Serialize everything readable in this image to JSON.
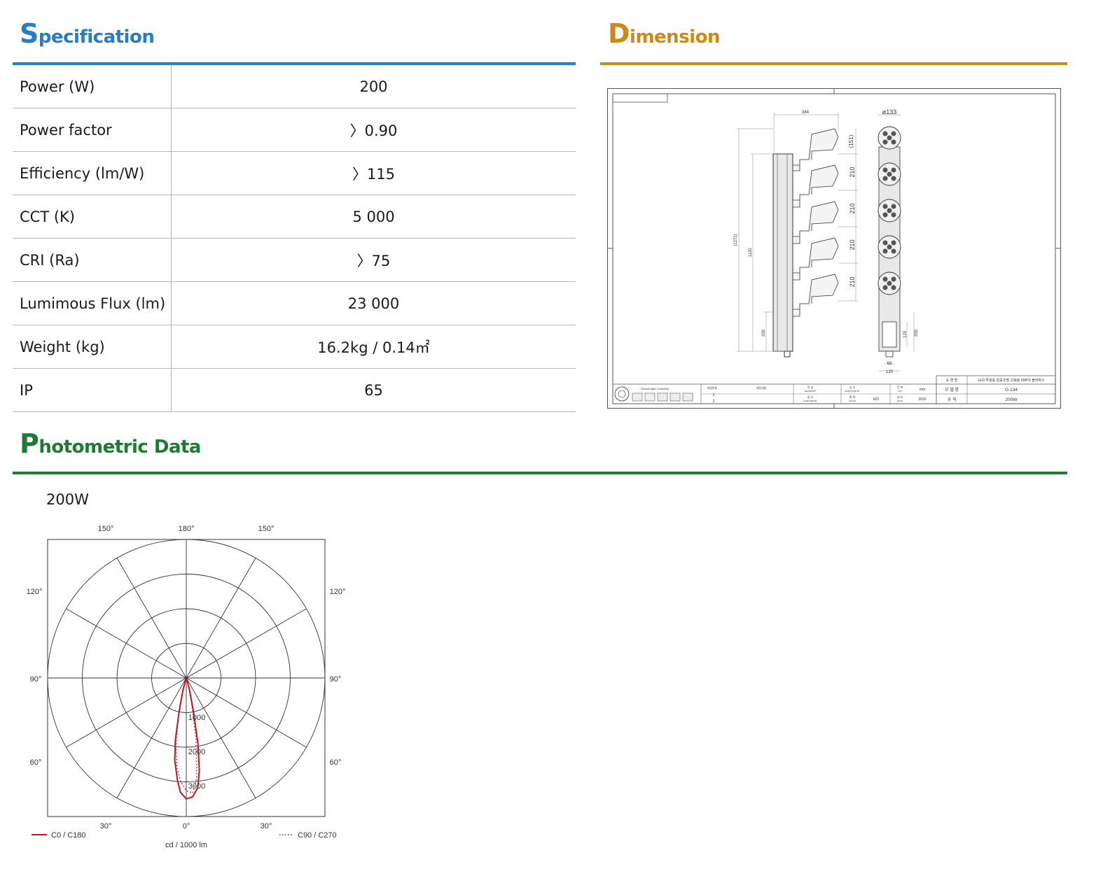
{
  "specification": {
    "title_cap": "S",
    "title_rest": "pecification",
    "rows": [
      {
        "label": "Power (W)",
        "value": "200"
      },
      {
        "label": "Power factor",
        "value": "〉0.90"
      },
      {
        "label": "Efficiency (lm/W)",
        "value": "〉115"
      },
      {
        "label": "CCT (K)",
        "value": "5 000"
      },
      {
        "label": "CRI (Ra)",
        "value": "〉75"
      },
      {
        "label": "Lumimous Flux (lm)",
        "value": "23 000"
      },
      {
        "label": "Weight (kg)",
        "value": "16.2kg / 0.14㎡"
      },
      {
        "label": "IP",
        "value": "65"
      }
    ]
  },
  "dimension": {
    "title_cap": "D",
    "title_rest": "imension",
    "drawing": {
      "dims": {
        "width_top": "384",
        "diameter": "ø133",
        "top_offset": "(151)",
        "pitch": "210",
        "overall": "(1271)",
        "body": "1120",
        "base": "200",
        "box_h": "120",
        "box_h2": "200",
        "foot_w": "68",
        "foot_w2": "120"
      },
      "title_block": {
        "company": "Global Light Company",
        "rev_no_label": "개정번호",
        "rev_content_label": "개정내용",
        "rev_1": "1",
        "rev_2": "2",
        "drawn_label": "작 성",
        "drawn_en": "DRAWN BY",
        "check_label": "검 사",
        "check_en": "CHECKED BY",
        "approve_label": "승 인",
        "approve_en": "APPROVED BY",
        "scale_label": "축 척",
        "scale_en": "SCALE",
        "scale_val": "N/S",
        "unit_label": "단 위",
        "unit_en": "UNIT",
        "unit_val": "mm",
        "date_label": "일 자",
        "date_en": "DATE",
        "date_val": "2020",
        "drawing_name_label": "도 면 명",
        "drawing_name": "LED 투광등 집중조명 고효율 SMPS 블럭박스",
        "model_label": "모 델 명",
        "model": "G-134",
        "spec_label": "규 격",
        "spec": "200W"
      }
    }
  },
  "photometric": {
    "title_cap": "P",
    "title_rest": "hotometric Data",
    "label": "200W",
    "chart_data": {
      "type": "polar",
      "angle_labels": {
        "top": [
          "150°",
          "180°",
          "150°"
        ],
        "left": [
          "120°",
          "90°",
          "60°"
        ],
        "right": [
          "120°",
          "90°",
          "60°"
        ],
        "bottom": [
          "30°",
          "0°",
          "30°"
        ]
      },
      "radial_ticks": [
        1000,
        2000,
        3000
      ],
      "rmax": 4000,
      "unit_label": "cd / 1000 lm",
      "series": [
        {
          "name": "C0 / C180",
          "color": "#c0161c",
          "style": "solid",
          "points": [
            {
              "angle": 0,
              "cd": 3490
            },
            {
              "angle": 3,
              "cd": 3440
            },
            {
              "angle": 6,
              "cd": 3180
            },
            {
              "angle": 8,
              "cd": 2700
            },
            {
              "angle": 10,
              "cd": 1950
            },
            {
              "angle": 12,
              "cd": 1000
            },
            {
              "angle": 15,
              "cd": 350
            },
            {
              "angle": 20,
              "cd": 60
            },
            {
              "angle": -3,
              "cd": 3300
            },
            {
              "angle": -5,
              "cd": 2950
            },
            {
              "angle": -8,
              "cd": 2400
            },
            {
              "angle": -10,
              "cd": 1800
            },
            {
              "angle": -12,
              "cd": 1000
            },
            {
              "angle": -15,
              "cd": 380
            },
            {
              "angle": -20,
              "cd": 60
            }
          ]
        },
        {
          "name": "C90 / C270",
          "color": "#c0161c",
          "style": "dotted",
          "points": [
            {
              "angle": 0,
              "cd": 3250
            },
            {
              "angle": 3,
              "cd": 3330
            },
            {
              "angle": 6,
              "cd": 2900
            },
            {
              "angle": 9,
              "cd": 1800
            },
            {
              "angle": 12,
              "cd": 750
            },
            {
              "angle": 16,
              "cd": 200
            },
            {
              "angle": 22,
              "cd": 40
            },
            {
              "angle": -3,
              "cd": 3000
            },
            {
              "angle": -6,
              "cd": 2600
            },
            {
              "angle": -9,
              "cd": 1900
            },
            {
              "angle": -12,
              "cd": 1100
            },
            {
              "angle": -16,
              "cd": 400
            },
            {
              "angle": -22,
              "cd": 60
            }
          ]
        }
      ]
    }
  }
}
